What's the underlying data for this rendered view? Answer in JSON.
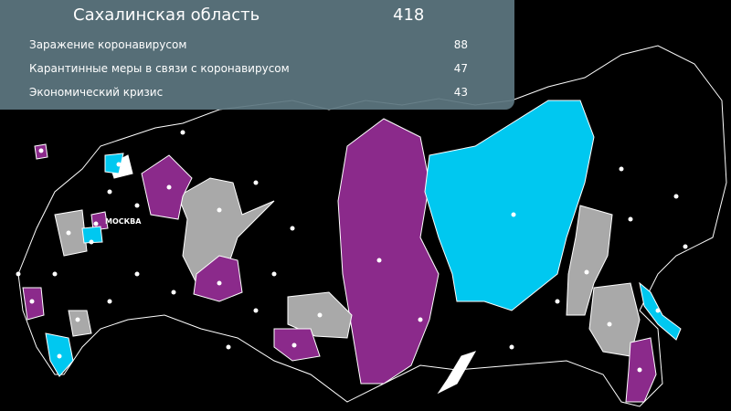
{
  "panel": {
    "region": "Сахалинская область",
    "total": "418",
    "topics": [
      {
        "label": "Заражение коронавирусом",
        "value": "88"
      },
      {
        "label": "Карантинные меры в связи с коронавирусом",
        "value": "47"
      },
      {
        "label": "Экономический кризис",
        "value": "43"
      }
    ]
  },
  "map": {
    "city_label": "МОСКВА",
    "colors": {
      "purple": "#8b2a8b",
      "cyan": "#00c8f0",
      "gray": "#a9a9a9",
      "background": "#000000",
      "border": "#ffffff"
    }
  }
}
